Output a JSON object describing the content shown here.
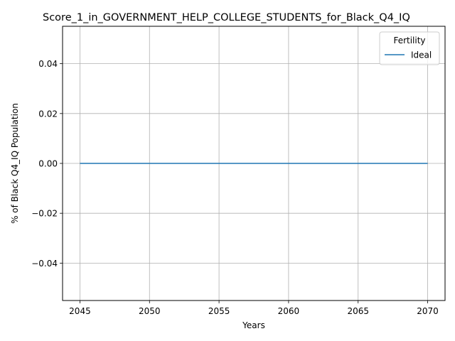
{
  "chart_data": {
    "type": "line",
    "title": "Score_1_in_GOVERNMENT_HELP_COLLEGE_STUDENTS_for_Black_Q4_IQ",
    "xlabel": "Years",
    "ylabel": "% of Black Q4_IQ Population",
    "xlim": [
      2043.75,
      2071.25
    ],
    "ylim": [
      -0.055,
      0.055
    ],
    "x_ticks": [
      2045,
      2050,
      2055,
      2060,
      2065,
      2070
    ],
    "x_tick_labels": [
      "2045",
      "2050",
      "2055",
      "2060",
      "2065",
      "2070"
    ],
    "y_ticks": [
      -0.04,
      -0.02,
      0.0,
      0.02,
      0.04
    ],
    "y_tick_labels": [
      "−0.04",
      "−0.02",
      "0.00",
      "0.02",
      "0.04"
    ],
    "grid": true,
    "legend": {
      "title": "Fertility",
      "position": "top-right"
    },
    "series": [
      {
        "name": "Ideal",
        "color": "#1f77b4",
        "x": [
          2045,
          2050,
          2055,
          2060,
          2065,
          2070
        ],
        "y": [
          0,
          0,
          0,
          0,
          0,
          0
        ]
      }
    ]
  }
}
